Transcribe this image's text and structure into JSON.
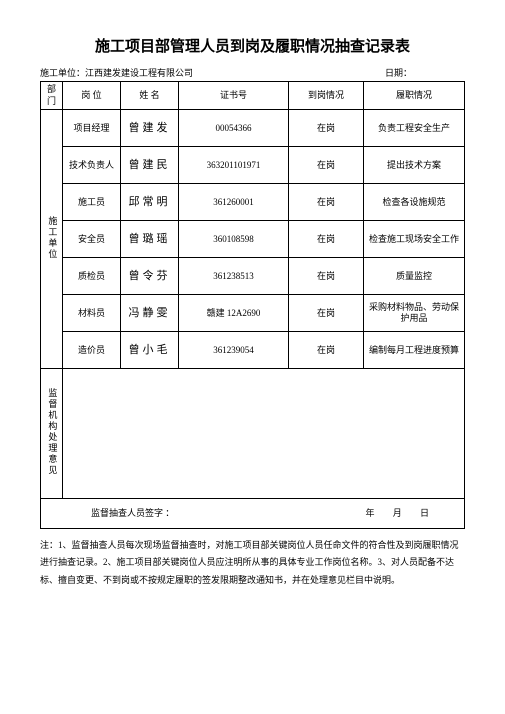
{
  "title": "施工项目部管理人员到岗及履职情况抽查记录表",
  "meta": {
    "unit_label": "施工单位：",
    "unit_value": "江西建发建设工程有限公司",
    "date_label": "日期："
  },
  "header": {
    "dept": "部门",
    "position": "岗  位",
    "name": "姓    名",
    "cert": "证书号",
    "attendance": "到岗情况",
    "duty": "履职情况"
  },
  "dept_label": "施工单位",
  "rows": [
    {
      "position": "项目经理",
      "name": "曾建发",
      "cert": "00054366",
      "attendance": "在岗",
      "duty": "负责工程安全生产"
    },
    {
      "position": "技术负责人",
      "name": "曾建民",
      "cert": "363201101971",
      "attendance": "在岗",
      "duty": "提出技术方案"
    },
    {
      "position": "施工员",
      "name": "邱常明",
      "cert": "361260001",
      "attendance": "在岗",
      "duty": "检查各设施规范"
    },
    {
      "position": "安全员",
      "name": "曾璐瑶",
      "cert": "360108598",
      "attendance": "在岗",
      "duty": "检查施工现场安全工作"
    },
    {
      "position": "质检员",
      "name": "曾令芬",
      "cert": "361238513",
      "attendance": "在岗",
      "duty": "质量监控"
    },
    {
      "position": "材料员",
      "name": "冯静雯",
      "cert": "赣建 12A2690",
      "attendance": "在岗",
      "duty": "采购材料物品、劳动保护用品"
    },
    {
      "position": "造价员",
      "name": "曾小毛",
      "cert": "361239054",
      "attendance": "在岗",
      "duty": "编制每月工程进度预算"
    }
  ],
  "supervision_label": "监督机构处理意见",
  "sign": {
    "label": "监督抽查人员签字  ：",
    "date": "年    月    日"
  },
  "notes": "注：1、监督抽查人员每次现场监督抽查时，对施工项目部关键岗位人员任命文件的符合性及到岗履职情况进行抽查记录。2、施工项目部关键岗位人员应注明所从事的具体专业工作岗位名称。3、对人员配备不达标、擅自变更、不到岗或不按规定履职的签发限期整改通知书，并在处理意见栏目中说明。"
}
